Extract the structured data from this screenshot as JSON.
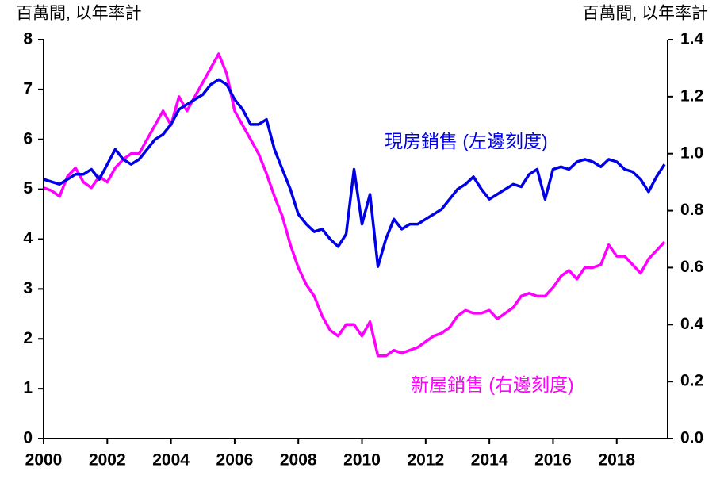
{
  "chart_data": {
    "type": "line",
    "ylabel": "百萬間, 以年率計",
    "y2label": "百萬間, 以年率計",
    "annotations": [
      "現房銷售 (左邊刻度)",
      "新屋銷售 (右邊刻度)"
    ],
    "x": [
      2000,
      2000.25,
      2000.5,
      2000.75,
      2001,
      2001.25,
      2001.5,
      2001.75,
      2002,
      2002.25,
      2002.5,
      2002.75,
      2003,
      2003.25,
      2003.5,
      2003.75,
      2004,
      2004.25,
      2004.5,
      2004.75,
      2005,
      2005.25,
      2005.5,
      2005.75,
      2006,
      2006.25,
      2006.5,
      2006.75,
      2007,
      2007.25,
      2007.5,
      2007.75,
      2008,
      2008.25,
      2008.5,
      2008.75,
      2009,
      2009.25,
      2009.5,
      2009.75,
      2010,
      2010.25,
      2010.5,
      2010.75,
      2011,
      2011.25,
      2011.5,
      2011.75,
      2012,
      2012.25,
      2012.5,
      2012.75,
      2013,
      2013.25,
      2013.5,
      2013.75,
      2014,
      2014.25,
      2014.5,
      2014.75,
      2015,
      2015.25,
      2015.5,
      2015.75,
      2016,
      2016.25,
      2016.5,
      2016.75,
      2017,
      2017.25,
      2017.5,
      2017.75,
      2018,
      2018.25,
      2018.5,
      2018.75,
      2019,
      2019.25,
      2019.5
    ],
    "series": [
      {
        "name": "現房銷售",
        "color": "#0000e6",
        "axis": "y",
        "values": [
          5.2,
          5.15,
          5.1,
          5.2,
          5.3,
          5.3,
          5.4,
          5.2,
          5.5,
          5.8,
          5.6,
          5.5,
          5.6,
          5.8,
          6.0,
          6.1,
          6.3,
          6.6,
          6.7,
          6.8,
          6.9,
          7.1,
          7.2,
          7.1,
          6.8,
          6.6,
          6.3,
          6.3,
          6.4,
          5.8,
          5.4,
          5.0,
          4.5,
          4.3,
          4.15,
          4.2,
          4.0,
          3.85,
          4.1,
          5.4,
          4.3,
          4.9,
          3.45,
          4.0,
          4.4,
          4.2,
          4.3,
          4.3,
          4.4,
          4.5,
          4.6,
          4.8,
          5.0,
          5.1,
          5.25,
          5.0,
          4.8,
          4.9,
          5.0,
          5.1,
          5.05,
          5.3,
          5.4,
          4.8,
          5.4,
          5.45,
          5.4,
          5.55,
          5.6,
          5.55,
          5.45,
          5.6,
          5.55,
          5.4,
          5.35,
          5.2,
          4.95,
          5.25,
          5.5
        ]
      },
      {
        "name": "新屋銷售",
        "color": "#ff00ff",
        "axis": "y2",
        "values": [
          0.88,
          0.87,
          0.85,
          0.92,
          0.95,
          0.9,
          0.88,
          0.92,
          0.9,
          0.95,
          0.98,
          1.0,
          1.0,
          1.05,
          1.1,
          1.15,
          1.1,
          1.2,
          1.15,
          1.2,
          1.25,
          1.3,
          1.35,
          1.28,
          1.15,
          1.1,
          1.05,
          1.0,
          0.93,
          0.85,
          0.78,
          0.68,
          0.6,
          0.54,
          0.5,
          0.43,
          0.38,
          0.36,
          0.4,
          0.4,
          0.36,
          0.41,
          0.29,
          0.29,
          0.31,
          0.3,
          0.31,
          0.32,
          0.34,
          0.36,
          0.37,
          0.39,
          0.43,
          0.45,
          0.44,
          0.44,
          0.45,
          0.42,
          0.44,
          0.46,
          0.5,
          0.51,
          0.5,
          0.5,
          0.53,
          0.57,
          0.59,
          0.56,
          0.6,
          0.6,
          0.61,
          0.68,
          0.64,
          0.64,
          0.61,
          0.58,
          0.63,
          0.66,
          0.69
        ]
      }
    ],
    "xlim": [
      2000,
      2019.6
    ],
    "xticks": [
      2000,
      2002,
      2004,
      2006,
      2008,
      2010,
      2012,
      2014,
      2016,
      2018
    ],
    "ylim": [
      0,
      8
    ],
    "yticks": [
      0,
      1,
      2,
      3,
      4,
      5,
      6,
      7,
      8
    ],
    "y2lim": [
      0,
      1.4
    ],
    "y2ticks": [
      {
        "value": 0,
        "label": "0.0"
      },
      {
        "value": 0.2,
        "label": "0.2"
      },
      {
        "value": 0.4,
        "label": "0.4"
      },
      {
        "value": 0.6,
        "label": "0.6"
      },
      {
        "value": 0.8,
        "label": "0.8"
      },
      {
        "value": 1,
        "label": "1.0"
      },
      {
        "value": 1.2,
        "label": "1.2"
      },
      {
        "value": 1.4,
        "label": "1.4"
      }
    ],
    "grid": false
  }
}
